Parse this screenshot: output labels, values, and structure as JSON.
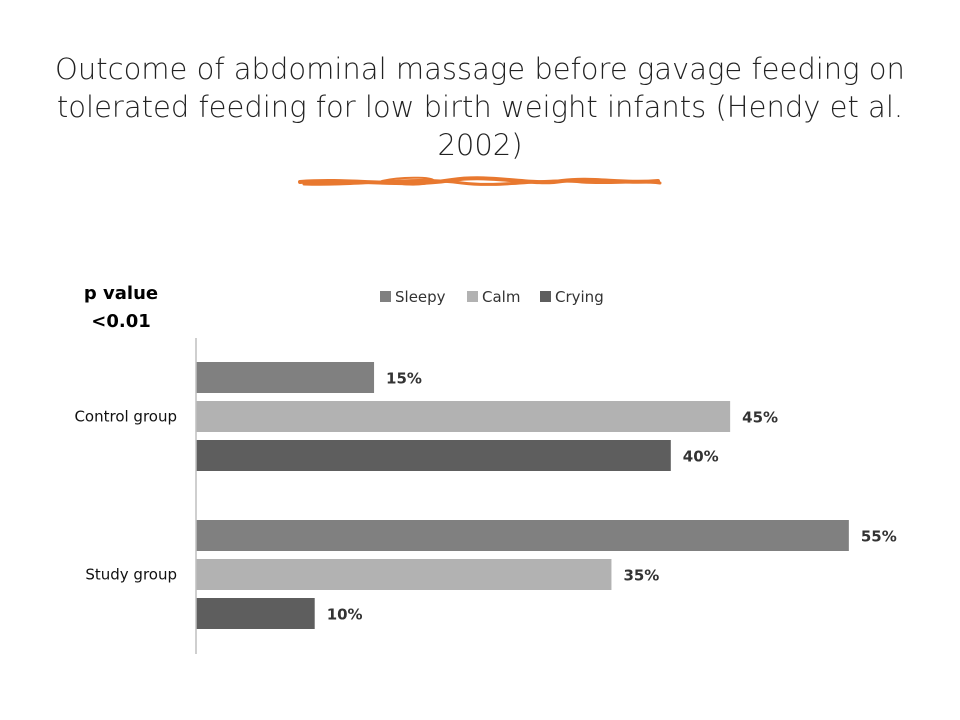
{
  "title": "Outcome of abdominal massage before gavage feeding on tolerated feeding for low birth weight infants (Hendy et al. 2002)",
  "annotation": {
    "line1": "p value",
    "line2": "<0.01"
  },
  "colors": {
    "accent_underline": "#e8782f"
  },
  "chart_data": {
    "type": "bar",
    "orientation": "horizontal",
    "categories": [
      "Control group",
      "Study group"
    ],
    "series": [
      {
        "name": "Sleepy",
        "values": [
          15,
          55
        ],
        "labels": [
          "15%",
          "55%"
        ],
        "color": "#808080"
      },
      {
        "name": "Calm",
        "values": [
          45,
          35
        ],
        "labels": [
          "45%",
          "35%"
        ],
        "color": "#b2b2b2"
      },
      {
        "name": "Crying",
        "values": [
          40,
          10
        ],
        "labels": [
          "40%",
          "10%"
        ],
        "color": "#5e5e5e"
      }
    ],
    "unit": "%",
    "xlim": [
      0,
      60
    ],
    "legend": "top",
    "grid": false
  }
}
